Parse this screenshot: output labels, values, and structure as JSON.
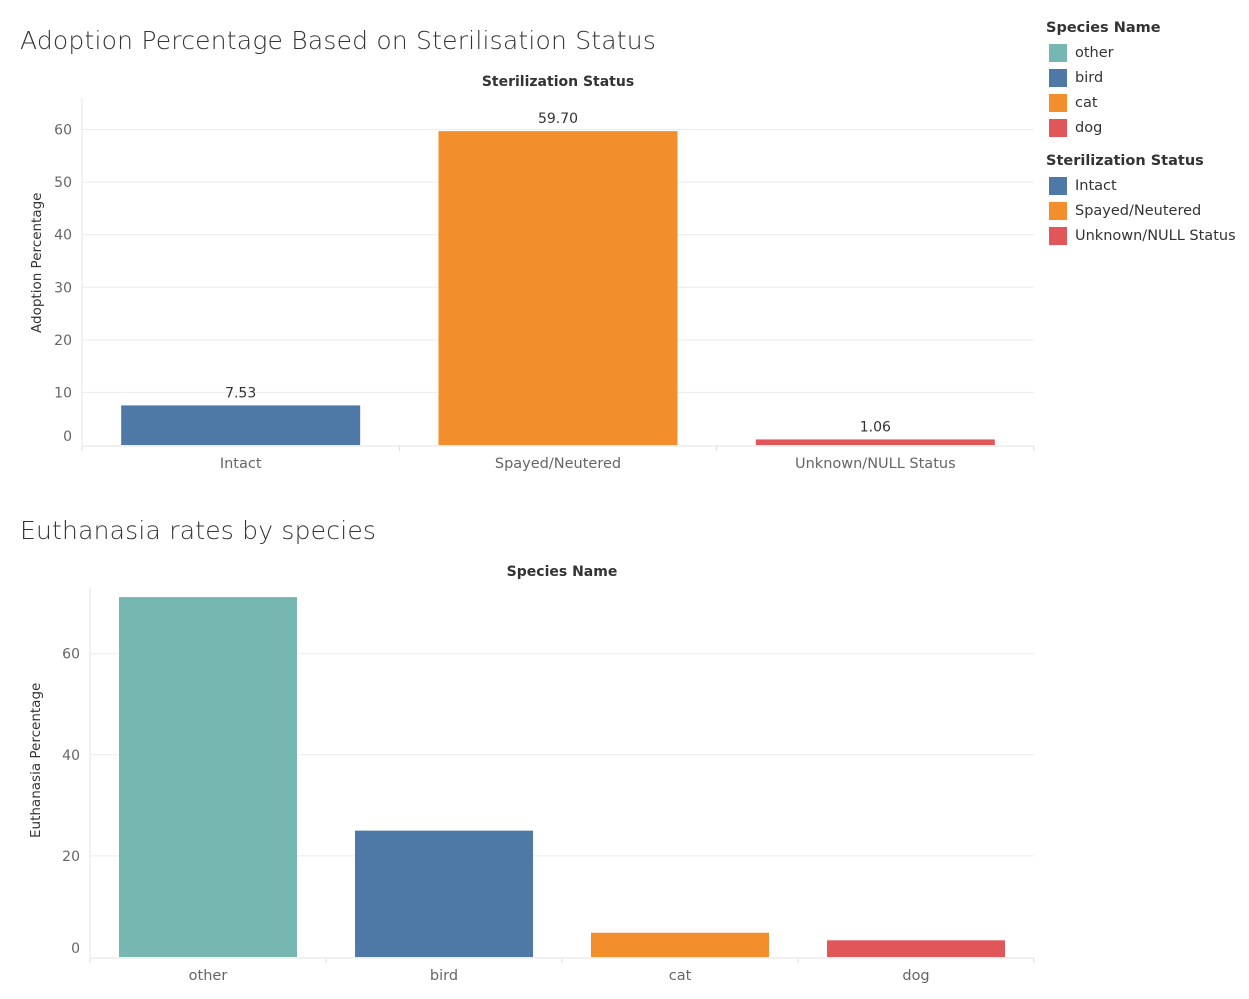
{
  "chart_data": [
    {
      "type": "bar",
      "title": "Adoption Percentage Based on Sterilisation Status",
      "column_header": "Sterilization Status",
      "xlabel": "",
      "ylabel": "Adoption Percentage",
      "ylim": [
        0,
        66
      ],
      "yticks": [
        0,
        10,
        20,
        30,
        40,
        50,
        60
      ],
      "grid": true,
      "categories": [
        "Intact",
        "Spayed/Neutered",
        "Unknown/NULL Status"
      ],
      "values": [
        7.53,
        59.7,
        1.06
      ],
      "value_labels": [
        "7.53",
        "59.70",
        "1.06"
      ],
      "colors": [
        "#4e79a7",
        "#f28e2b",
        "#e15759"
      ]
    },
    {
      "type": "bar",
      "title": "Euthanasia rates by species",
      "column_header": "Species Name",
      "xlabel": "",
      "ylabel": "Euthanasia Percentage",
      "ylim": [
        0,
        73
      ],
      "yticks": [
        0,
        20,
        40,
        60
      ],
      "grid": true,
      "categories": [
        "other",
        "bird",
        "cat",
        "dog"
      ],
      "values": [
        71.2,
        25.0,
        4.8,
        3.3
      ],
      "colors": [
        "#76b7b2",
        "#4e79a7",
        "#f28e2b",
        "#e15759"
      ]
    }
  ],
  "legends": [
    {
      "title": "Species Name",
      "items": [
        {
          "label": "other",
          "color": "#76b7b2"
        },
        {
          "label": "bird",
          "color": "#4e79a7"
        },
        {
          "label": "cat",
          "color": "#f28e2b"
        },
        {
          "label": "dog",
          "color": "#e15759"
        }
      ]
    },
    {
      "title": "Sterilization Status",
      "items": [
        {
          "label": "Intact",
          "color": "#4e79a7"
        },
        {
          "label": "Spayed/Neutered",
          "color": "#f28e2b"
        },
        {
          "label": "Unknown/NULL Status",
          "color": "#e15759"
        }
      ]
    }
  ]
}
